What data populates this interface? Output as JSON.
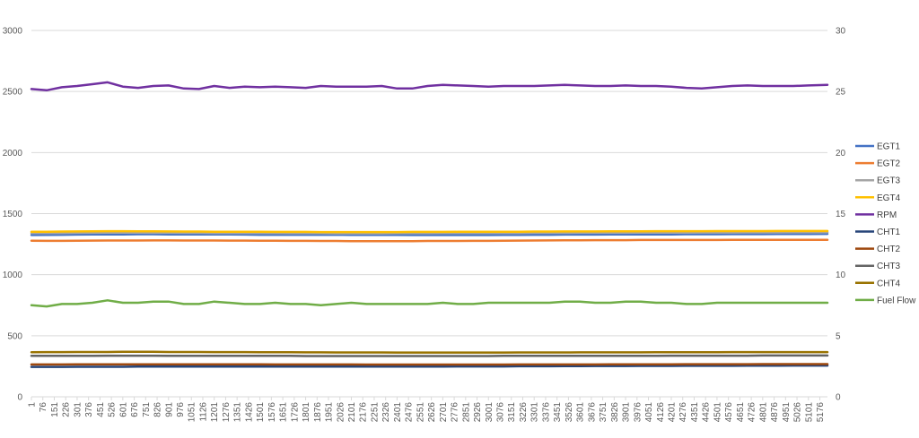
{
  "chart_data": {
    "type": "line",
    "title": "",
    "xlabel": "",
    "ylabel": "",
    "y2label": "",
    "ylim": [
      0,
      3000
    ],
    "y2lim": [
      0,
      30
    ],
    "y_ticks": [
      0,
      500,
      1000,
      1500,
      2000,
      2500,
      3000
    ],
    "y2_ticks": [
      0,
      5,
      10,
      15,
      20,
      25,
      30
    ],
    "x_range": [
      1,
      5226
    ],
    "x_ticks": [
      1,
      76,
      151,
      226,
      301,
      376,
      451,
      526,
      601,
      676,
      751,
      826,
      901,
      976,
      1051,
      1126,
      1201,
      1276,
      1351,
      1426,
      1501,
      1576,
      1651,
      1726,
      1801,
      1876,
      1951,
      2026,
      2101,
      2176,
      2251,
      2326,
      2401,
      2476,
      2551,
      2626,
      2701,
      2776,
      2851,
      2926,
      3001,
      3076,
      3151,
      3226,
      3301,
      3376,
      3451,
      3526,
      3601,
      3676,
      3751,
      3826,
      3901,
      3976,
      4051,
      4126,
      4201,
      4276,
      4351,
      4426,
      4501,
      4576,
      4651,
      4726,
      4801,
      4876,
      4951,
      5026,
      5101,
      5176
    ],
    "grid": "horizontal",
    "legend_position": "right",
    "x": [
      1,
      101,
      201,
      301,
      401,
      501,
      601,
      701,
      801,
      901,
      1001,
      1101,
      1201,
      1301,
      1401,
      1501,
      1601,
      1701,
      1801,
      1901,
      2001,
      2101,
      2201,
      2301,
      2401,
      2501,
      2601,
      2701,
      2801,
      2901,
      3001,
      3101,
      3201,
      3301,
      3401,
      3501,
      3601,
      3701,
      3801,
      3901,
      4001,
      4101,
      4201,
      4301,
      4401,
      4501,
      4601,
      4701,
      4801,
      4901,
      5001,
      5101,
      5226
    ],
    "series": [
      {
        "name": "EGT1",
        "color": "#4472C4",
        "axis": "left",
        "values": [
          1325,
          1326,
          1327,
          1328,
          1329,
          1330,
          1330,
          1331,
          1331,
          1330,
          1330,
          1330,
          1329,
          1329,
          1328,
          1327,
          1327,
          1327,
          1327,
          1327,
          1327,
          1326,
          1326,
          1326,
          1326,
          1325,
          1325,
          1325,
          1325,
          1325,
          1325,
          1326,
          1326,
          1327,
          1327,
          1328,
          1328,
          1328,
          1329,
          1329,
          1330,
          1330,
          1330,
          1331,
          1331,
          1331,
          1332,
          1332,
          1332,
          1333,
          1333,
          1333,
          1334
        ]
      },
      {
        "name": "EGT2",
        "color": "#ED7D31",
        "axis": "left",
        "values": [
          1278,
          1277,
          1277,
          1278,
          1279,
          1280,
          1280,
          1280,
          1281,
          1281,
          1280,
          1280,
          1280,
          1279,
          1279,
          1278,
          1278,
          1277,
          1277,
          1276,
          1276,
          1275,
          1275,
          1275,
          1275,
          1275,
          1276,
          1276,
          1276,
          1277,
          1277,
          1278,
          1279,
          1280,
          1281,
          1282,
          1282,
          1283,
          1283,
          1283,
          1284,
          1284,
          1284,
          1284,
          1284,
          1284,
          1285,
          1285,
          1285,
          1285,
          1285,
          1285,
          1285
        ]
      },
      {
        "name": "EGT3",
        "color": "#A5A5A5",
        "axis": "left",
        "values": [
          1340,
          1340,
          1341,
          1342,
          1343,
          1344,
          1344,
          1344,
          1343,
          1343,
          1342,
          1342,
          1341,
          1341,
          1340,
          1340,
          1340,
          1339,
          1339,
          1339,
          1338,
          1338,
          1338,
          1338,
          1339,
          1339,
          1339,
          1340,
          1340,
          1340,
          1341,
          1341,
          1341,
          1342,
          1342,
          1342,
          1343,
          1343,
          1343,
          1343,
          1344,
          1344,
          1344,
          1344,
          1345,
          1345,
          1345,
          1346,
          1346,
          1346,
          1347,
          1347,
          1347
        ]
      },
      {
        "name": "EGT4",
        "color": "#FFC000",
        "axis": "left",
        "values": [
          1352,
          1352,
          1353,
          1354,
          1355,
          1356,
          1356,
          1355,
          1355,
          1354,
          1353,
          1353,
          1352,
          1352,
          1351,
          1351,
          1350,
          1350,
          1350,
          1349,
          1349,
          1349,
          1349,
          1349,
          1349,
          1350,
          1350,
          1350,
          1351,
          1351,
          1351,
          1352,
          1352,
          1353,
          1353,
          1354,
          1354,
          1354,
          1355,
          1355,
          1355,
          1356,
          1356,
          1356,
          1356,
          1357,
          1357,
          1357,
          1357,
          1358,
          1358,
          1358,
          1358
        ]
      },
      {
        "name": "RPM",
        "color": "#7030A0",
        "axis": "left",
        "values": [
          2520,
          2510,
          2535,
          2545,
          2560,
          2575,
          2540,
          2530,
          2545,
          2550,
          2525,
          2520,
          2545,
          2530,
          2540,
          2535,
          2540,
          2535,
          2530,
          2545,
          2540,
          2540,
          2540,
          2545,
          2525,
          2525,
          2545,
          2555,
          2550,
          2545,
          2540,
          2545,
          2545,
          2545,
          2550,
          2555,
          2550,
          2545,
          2545,
          2550,
          2545,
          2545,
          2540,
          2530,
          2525,
          2535,
          2545,
          2550,
          2545,
          2545,
          2545,
          2550,
          2555
        ]
      },
      {
        "name": "CHT1",
        "color": "#264478",
        "axis": "left",
        "values": [
          245,
          245,
          245,
          246,
          246,
          246,
          246,
          247,
          247,
          247,
          247,
          247,
          247,
          247,
          247,
          247,
          247,
          247,
          248,
          248,
          248,
          248,
          248,
          248,
          248,
          248,
          248,
          248,
          249,
          249,
          249,
          249,
          250,
          250,
          250,
          251,
          251,
          252,
          252,
          252,
          253,
          253,
          253,
          254,
          254,
          254,
          254,
          255,
          255,
          255,
          256,
          256,
          256
        ]
      },
      {
        "name": "CHT2",
        "color": "#9E480E",
        "axis": "left",
        "values": [
          265,
          265,
          265,
          266,
          266,
          266,
          266,
          266,
          266,
          266,
          266,
          266,
          266,
          266,
          266,
          266,
          265,
          265,
          265,
          265,
          265,
          265,
          264,
          264,
          264,
          264,
          264,
          264,
          264,
          264,
          264,
          264,
          265,
          265,
          265,
          265,
          265,
          265,
          266,
          266,
          266,
          266,
          266,
          267,
          267,
          267,
          267,
          267,
          268,
          268,
          268,
          268,
          268
        ]
      },
      {
        "name": "CHT3",
        "color": "#636363",
        "axis": "left",
        "values": [
          335,
          335,
          336,
          336,
          336,
          337,
          337,
          337,
          337,
          336,
          336,
          336,
          336,
          335,
          335,
          335,
          335,
          335,
          334,
          334,
          334,
          334,
          334,
          334,
          334,
          334,
          334,
          334,
          334,
          334,
          334,
          335,
          335,
          335,
          335,
          335,
          336,
          336,
          336,
          336,
          336,
          336,
          337,
          337,
          337,
          337,
          337,
          337,
          338,
          338,
          338,
          338,
          338
        ]
      },
      {
        "name": "CHT4",
        "color": "#997300",
        "axis": "left",
        "values": [
          365,
          366,
          366,
          367,
          367,
          367,
          368,
          368,
          368,
          367,
          367,
          367,
          366,
          366,
          366,
          365,
          365,
          365,
          364,
          364,
          363,
          363,
          363,
          363,
          362,
          362,
          362,
          362,
          362,
          362,
          362,
          362,
          363,
          363,
          363,
          363,
          364,
          364,
          364,
          364,
          364,
          365,
          365,
          365,
          365,
          365,
          366,
          366,
          366,
          366,
          366,
          366,
          366
        ]
      },
      {
        "name": "Fuel Flow",
        "color": "#70AD47",
        "axis": "right",
        "values": [
          7.5,
          7.4,
          7.6,
          7.6,
          7.7,
          7.9,
          7.7,
          7.7,
          7.8,
          7.8,
          7.6,
          7.6,
          7.8,
          7.7,
          7.6,
          7.6,
          7.7,
          7.6,
          7.6,
          7.5,
          7.6,
          7.7,
          7.6,
          7.6,
          7.6,
          7.6,
          7.6,
          7.7,
          7.6,
          7.6,
          7.7,
          7.7,
          7.7,
          7.7,
          7.7,
          7.8,
          7.8,
          7.7,
          7.7,
          7.8,
          7.8,
          7.7,
          7.7,
          7.6,
          7.6,
          7.7,
          7.7,
          7.7,
          7.7,
          7.7,
          7.7,
          7.7,
          7.7
        ]
      }
    ]
  }
}
